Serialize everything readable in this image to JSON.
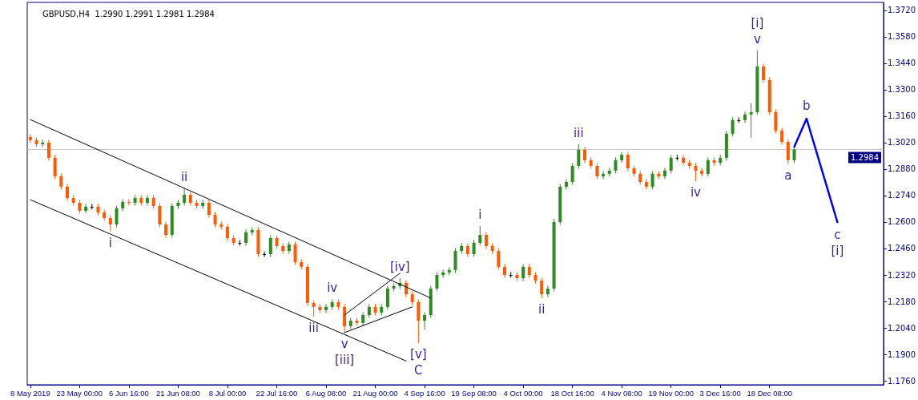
{
  "chart_data": {
    "type": "candlestick",
    "title": "GBPUSD,H4  1.2990 1.2991 1.2981 1.2984",
    "categories": [
      "8 May 2019",
      null,
      null,
      null,
      null,
      null,
      null,
      null,
      "23 May 00:00",
      null,
      null,
      null,
      null,
      null,
      null,
      null,
      "6 Jun 16:00",
      null,
      null,
      null,
      null,
      null,
      null,
      null,
      "21 Jun 08:00",
      null,
      null,
      null,
      null,
      null,
      null,
      null,
      "8 Jul 00:00",
      null,
      null,
      null,
      null,
      null,
      null,
      null,
      "22 Jul 16:00",
      null,
      null,
      null,
      null,
      null,
      null,
      null,
      "6 Aug 08:00",
      null,
      null,
      null,
      null,
      null,
      null,
      null,
      "21 Aug 00:00",
      null,
      null,
      null,
      null,
      null,
      null,
      null,
      "4 Sep 16:00",
      null,
      null,
      null,
      null,
      null,
      null,
      null,
      "19 Sep 08:00",
      null,
      null,
      null,
      null,
      null,
      null,
      null,
      "4 Oct 00:00",
      null,
      null,
      null,
      null,
      null,
      null,
      null,
      "18 Oct 16:00",
      null,
      null,
      null,
      null,
      null,
      null,
      null,
      "4 Nov 08:00",
      null,
      null,
      null,
      null,
      null,
      null,
      null,
      "19 Nov 00:00",
      null,
      null,
      null,
      null,
      null,
      null,
      null,
      "3 Dec 16:00",
      null,
      null,
      null,
      null,
      null,
      null,
      null,
      "18 Dec 08:00",
      null,
      null,
      null,
      null,
      null,
      null,
      null,
      null,
      null,
      null,
      null,
      null,
      null,
      null,
      null,
      null,
      null,
      null
    ],
    "ohlc": [
      [
        1.305,
        1.3065,
        1.3018,
        1.3033
      ],
      [
        1.3033,
        1.3048,
        1.2997,
        1.3012
      ],
      [
        1.3012,
        1.3035,
        1.2997,
        1.302
      ],
      [
        1.302,
        1.3035,
        1.2925,
        1.294
      ],
      [
        1.294,
        1.2955,
        1.2827,
        1.2842
      ],
      [
        1.2842,
        1.2857,
        1.2772,
        1.2787
      ],
      [
        1.2787,
        1.2802,
        1.2712,
        1.2727
      ],
      [
        1.2727,
        1.2742,
        1.2687,
        1.2702
      ],
      [
        1.2702,
        1.2717,
        1.2645,
        1.266
      ],
      [
        1.266,
        1.2696,
        1.2645,
        1.2681
      ],
      [
        1.2681,
        1.2696,
        1.2666,
        1.2681
      ],
      [
        1.2681,
        1.2696,
        1.2636,
        1.2651
      ],
      [
        1.2651,
        1.2666,
        1.2606,
        1.2621
      ],
      [
        1.2621,
        1.2636,
        1.255,
        1.2587
      ],
      [
        1.2587,
        1.2687,
        1.2572,
        1.2672
      ],
      [
        1.2672,
        1.2721,
        1.2657,
        1.2706
      ],
      [
        1.2706,
        1.2721,
        1.2687,
        1.2702
      ],
      [
        1.2702,
        1.2742,
        1.2687,
        1.2727
      ],
      [
        1.2727,
        1.2742,
        1.2687,
        1.2702
      ],
      [
        1.2702,
        1.2742,
        1.2687,
        1.2727
      ],
      [
        1.2727,
        1.2742,
        1.267,
        1.2685
      ],
      [
        1.2685,
        1.27,
        1.2572,
        1.2587
      ],
      [
        1.2587,
        1.2602,
        1.2517,
        1.2532
      ],
      [
        1.2532,
        1.27,
        1.2517,
        1.2685
      ],
      [
        1.2685,
        1.2717,
        1.267,
        1.2702
      ],
      [
        1.2702,
        1.2778,
        1.2687,
        1.2744
      ],
      [
        1.2744,
        1.2759,
        1.2687,
        1.2702
      ],
      [
        1.2702,
        1.2717,
        1.267,
        1.2685
      ],
      [
        1.2685,
        1.2717,
        1.267,
        1.2702
      ],
      [
        1.2702,
        1.2717,
        1.2623,
        1.2638
      ],
      [
        1.2638,
        1.2653,
        1.2572,
        1.2587
      ],
      [
        1.2587,
        1.2602,
        1.256,
        1.2575
      ],
      [
        1.2575,
        1.259,
        1.25,
        1.2515
      ],
      [
        1.2515,
        1.253,
        1.2475,
        1.249
      ],
      [
        1.249,
        1.2505,
        1.2475,
        1.249
      ],
      [
        1.249,
        1.256,
        1.2475,
        1.2545
      ],
      [
        1.2545,
        1.2573,
        1.253,
        1.2558
      ],
      [
        1.2558,
        1.2573,
        1.2415,
        1.243
      ],
      [
        1.243,
        1.2445,
        1.2415,
        1.243
      ],
      [
        1.243,
        1.253,
        1.2415,
        1.2515
      ],
      [
        1.2515,
        1.253,
        1.2458,
        1.2473
      ],
      [
        1.2473,
        1.2488,
        1.2432,
        1.2447
      ],
      [
        1.2447,
        1.2496,
        1.2432,
        1.2481
      ],
      [
        1.2481,
        1.2496,
        1.2373,
        1.2388
      ],
      [
        1.2388,
        1.2403,
        1.2348,
        1.2363
      ],
      [
        1.2363,
        1.2378,
        1.2157,
        1.2172
      ],
      [
        1.2172,
        1.2187,
        1.21,
        1.2151
      ],
      [
        1.2151,
        1.2166,
        1.2119,
        1.2134
      ],
      [
        1.2134,
        1.2166,
        1.2119,
        1.2151
      ],
      [
        1.2151,
        1.2191,
        1.2136,
        1.2176
      ],
      [
        1.2176,
        1.2191,
        1.2136,
        1.2151
      ],
      [
        1.2151,
        1.2166,
        1.2015,
        1.2049
      ],
      [
        1.2049,
        1.2093,
        1.2034,
        1.2078
      ],
      [
        1.2078,
        1.2093,
        1.2051,
        1.2066
      ],
      [
        1.2066,
        1.2123,
        1.2051,
        1.2108
      ],
      [
        1.2108,
        1.2166,
        1.2093,
        1.2151
      ],
      [
        1.2151,
        1.2166,
        1.2106,
        1.2121
      ],
      [
        1.2121,
        1.2166,
        1.2106,
        1.2151
      ],
      [
        1.2151,
        1.2263,
        1.2136,
        1.2248
      ],
      [
        1.2248,
        1.2276,
        1.2233,
        1.2261
      ],
      [
        1.2261,
        1.2303,
        1.2246,
        1.2278
      ],
      [
        1.2278,
        1.2293,
        1.2203,
        1.2218
      ],
      [
        1.2218,
        1.2233,
        1.2161,
        1.2176
      ],
      [
        1.2176,
        1.2191,
        1.196,
        1.2078
      ],
      [
        1.2078,
        1.2123,
        1.203,
        1.2108
      ],
      [
        1.2108,
        1.2263,
        1.2093,
        1.2248
      ],
      [
        1.2248,
        1.2335,
        1.2233,
        1.232
      ],
      [
        1.232,
        1.2348,
        1.2305,
        1.2333
      ],
      [
        1.2333,
        1.2361,
        1.2318,
        1.2346
      ],
      [
        1.2346,
        1.2462,
        1.2331,
        1.2447
      ],
      [
        1.2447,
        1.2488,
        1.2432,
        1.2473
      ],
      [
        1.2473,
        1.2488,
        1.2415,
        1.243
      ],
      [
        1.243,
        1.2505,
        1.2415,
        1.249
      ],
      [
        1.249,
        1.2579,
        1.2475,
        1.2532
      ],
      [
        1.2532,
        1.2547,
        1.2458,
        1.2473
      ],
      [
        1.2473,
        1.2488,
        1.2432,
        1.2447
      ],
      [
        1.2447,
        1.2462,
        1.2348,
        1.2363
      ],
      [
        1.2363,
        1.2378,
        1.2305,
        1.232
      ],
      [
        1.232,
        1.2335,
        1.2305,
        1.232
      ],
      [
        1.232,
        1.2335,
        1.2288,
        1.2303
      ],
      [
        1.2303,
        1.2378,
        1.2288,
        1.2363
      ],
      [
        1.2363,
        1.2378,
        1.2305,
        1.232
      ],
      [
        1.232,
        1.2335,
        1.2275,
        1.229
      ],
      [
        1.229,
        1.2305,
        1.2197,
        1.2218
      ],
      [
        1.2218,
        1.2263,
        1.2203,
        1.2248
      ],
      [
        1.2248,
        1.2615,
        1.2233,
        1.26
      ],
      [
        1.26,
        1.2802,
        1.2585,
        1.2787
      ],
      [
        1.2787,
        1.2827,
        1.2772,
        1.2812
      ],
      [
        1.2812,
        1.2912,
        1.2797,
        1.2897
      ],
      [
        1.2897,
        1.3012,
        1.2882,
        1.2982
      ],
      [
        1.2982,
        1.2997,
        1.2912,
        1.2927
      ],
      [
        1.2927,
        1.2942,
        1.2882,
        1.2897
      ],
      [
        1.2897,
        1.2912,
        1.2827,
        1.2842
      ],
      [
        1.2842,
        1.287,
        1.2827,
        1.2855
      ],
      [
        1.2855,
        1.2887,
        1.284,
        1.2872
      ],
      [
        1.2872,
        1.2942,
        1.2857,
        1.2927
      ],
      [
        1.2927,
        1.2971,
        1.2912,
        1.2956
      ],
      [
        1.2956,
        1.2971,
        1.2869,
        1.2884
      ],
      [
        1.2884,
        1.2899,
        1.284,
        1.2855
      ],
      [
        1.2855,
        1.287,
        1.2797,
        1.2812
      ],
      [
        1.2812,
        1.2827,
        1.2772,
        1.2787
      ],
      [
        1.2787,
        1.287,
        1.2772,
        1.2855
      ],
      [
        1.2855,
        1.287,
        1.2827,
        1.2842
      ],
      [
        1.2842,
        1.2887,
        1.2827,
        1.2872
      ],
      [
        1.2872,
        1.2955,
        1.2857,
        1.294
      ],
      [
        1.294,
        1.2955,
        1.2925,
        1.294
      ],
      [
        1.294,
        1.2955,
        1.2899,
        1.2914
      ],
      [
        1.2914,
        1.2929,
        1.2882,
        1.2897
      ],
      [
        1.2897,
        1.2912,
        1.2816,
        1.2872
      ],
      [
        1.2872,
        1.2887,
        1.284,
        1.2855
      ],
      [
        1.2855,
        1.2942,
        1.284,
        1.2927
      ],
      [
        1.2927,
        1.2942,
        1.2899,
        1.2914
      ],
      [
        1.2914,
        1.2955,
        1.2899,
        1.294
      ],
      [
        1.294,
        1.3082,
        1.2925,
        1.3067
      ],
      [
        1.3067,
        1.3154,
        1.3052,
        1.3139
      ],
      [
        1.3139,
        1.3154,
        1.3124,
        1.3139
      ],
      [
        1.3139,
        1.3184,
        1.3124,
        1.3169
      ],
      [
        1.3169,
        1.323,
        1.3046,
        1.3181
      ],
      [
        1.3181,
        1.3508,
        1.3166,
        1.3423
      ],
      [
        1.3423,
        1.3438,
        1.3336,
        1.3351
      ],
      [
        1.3351,
        1.3366,
        1.3166,
        1.3181
      ],
      [
        1.3181,
        1.3196,
        1.3069,
        1.3084
      ],
      [
        1.3084,
        1.3099,
        1.3009,
        1.3024
      ],
      [
        1.3024,
        1.3039,
        1.2906,
        1.2927
      ],
      [
        1.2927,
        1.2999,
        1.2912,
        1.2984
      ],
      null,
      null,
      null,
      null,
      null,
      null,
      null,
      null,
      null,
      null,
      null,
      null,
      null,
      null
    ],
    "colors": [
      "#ff5a00",
      "#ff5a00",
      "#2e8b22",
      "#ff5a00",
      "#ff5a00",
      "#ff5a00",
      "#ff5a00",
      "#ff5a00",
      "#ff5a00",
      "#2e8b22",
      "#000000",
      "#ff5a00",
      "#ff5a00",
      "#ff5a00",
      "#2e8b22",
      "#2e8b22",
      "#ff5a00",
      "#2e8b22",
      "#ff5a00",
      "#2e8b22",
      "#ff5a00",
      "#ff5a00",
      "#ff5a00",
      "#2e8b22",
      "#2e8b22",
      "#2e8b22",
      "#ff5a00",
      "#ff5a00",
      "#2e8b22",
      "#ff5a00",
      "#ff5a00",
      "#ff5a00",
      "#ff5a00",
      "#ff5a00",
      "#000000",
      "#2e8b22",
      "#2e8b22",
      "#ff5a00",
      "#000000",
      "#2e8b22",
      "#ff5a00",
      "#ff5a00",
      "#2e8b22",
      "#ff5a00",
      "#ff5a00",
      "#ff5a00",
      "#ff5a00",
      "#ff5a00",
      "#2e8b22",
      "#2e8b22",
      "#ff5a00",
      "#ff5a00",
      "#2e8b22",
      "#ff5a00",
      "#2e8b22",
      "#2e8b22",
      "#ff5a00",
      "#2e8b22",
      "#2e8b22",
      "#2e8b22",
      "#2e8b22",
      "#ff5a00",
      "#ff5a00",
      "#ff5a00",
      "#2e8b22",
      "#2e8b22",
      "#2e8b22",
      "#2e8b22",
      "#2e8b22",
      "#2e8b22",
      "#2e8b22",
      "#ff5a00",
      "#2e8b22",
      "#2e8b22",
      "#ff5a00",
      "#ff5a00",
      "#ff5a00",
      "#ff5a00",
      "#000000",
      "#ff5a00",
      "#2e8b22",
      "#ff5a00",
      "#ff5a00",
      "#ff5a00",
      "#2e8b22",
      "#2e8b22",
      "#2e8b22",
      "#2e8b22",
      "#2e8b22",
      "#2e8b22",
      "#ff5a00",
      "#ff5a00",
      "#ff5a00",
      "#2e8b22",
      "#2e8b22",
      "#2e8b22",
      "#2e8b22",
      "#ff5a00",
      "#ff5a00",
      "#ff5a00",
      "#ff5a00",
      "#2e8b22",
      "#ff5a00",
      "#2e8b22",
      "#2e8b22",
      "#000000",
      "#ff5a00",
      "#ff5a00",
      "#ff5a00",
      "#ff5a00",
      "#2e8b22",
      "#ff5a00",
      "#2e8b22",
      "#2e8b22",
      "#2e8b22",
      "#000000",
      "#2e8b22",
      "#2e8b22",
      "#2e8b22",
      "#ff5a00",
      "#ff5a00",
      "#ff5a00",
      "#ff5a00",
      "#ff5a00",
      "#2e8b22",
      null,
      null,
      null,
      null,
      null,
      null,
      null,
      null,
      null,
      null,
      null,
      null,
      null,
      null
    ],
    "value_labels": [
      null,
      null,
      null,
      null,
      null,
      null,
      null,
      null,
      null,
      null,
      null,
      null,
      null,
      "i",
      null,
      null,
      null,
      null,
      null,
      null,
      null,
      null,
      null,
      null,
      null,
      "ii",
      null,
      null,
      null,
      null,
      null,
      null,
      null,
      null,
      null,
      null,
      null,
      null,
      null,
      null,
      null,
      null,
      null,
      null,
      null,
      null,
      "iii",
      null,
      null,
      "iv",
      null,
      "v\n[iii]",
      null,
      null,
      null,
      null,
      null,
      null,
      null,
      null,
      "[iv]",
      null,
      null,
      "[v]\nC",
      null,
      null,
      null,
      null,
      null,
      null,
      null,
      null,
      null,
      "i",
      null,
      null,
      null,
      null,
      null,
      null,
      null,
      null,
      null,
      "ii",
      null,
      null,
      null,
      null,
      null,
      "iii",
      null,
      null,
      null,
      null,
      null,
      null,
      null,
      null,
      null,
      null,
      null,
      null,
      null,
      null,
      null,
      null,
      null,
      null,
      "iv",
      null,
      null,
      null,
      null,
      null,
      null,
      null,
      null,
      null,
      "[i]\nv",
      null,
      null,
      null,
      null,
      "a",
      null,
      null,
      null,
      null,
      null,
      null,
      null,
      null,
      null,
      null,
      null,
      null,
      null,
      null,
      null
    ],
    "series": [
      {
        "type": "line",
        "color": "#000000",
        "values": [
          1.3142,
          null,
          null,
          null,
          null,
          null,
          null,
          null,
          null,
          null,
          null,
          null,
          null,
          null,
          null,
          null,
          null,
          null,
          null,
          null,
          null,
          null,
          null,
          null,
          null,
          null,
          null,
          null,
          null,
          null,
          null,
          null,
          null,
          null,
          null,
          null,
          null,
          null,
          null,
          null,
          null,
          null,
          null,
          null,
          null,
          null,
          null,
          null,
          null,
          null,
          null,
          null,
          null,
          null,
          null,
          null,
          null,
          null,
          null,
          null,
          null,
          null,
          null,
          null,
          null,
          1.2198,
          null,
          null,
          null,
          null,
          null,
          null,
          null,
          null,
          null,
          null,
          null,
          null,
          null,
          null,
          null,
          null,
          null,
          null,
          null,
          null,
          null,
          null,
          null,
          null,
          null,
          null,
          null,
          null,
          null,
          null,
          null,
          null,
          null,
          null,
          null,
          null,
          null,
          null,
          null,
          null,
          null,
          null,
          null,
          null,
          null,
          null,
          null,
          null,
          null,
          null,
          null,
          null,
          null,
          null,
          null,
          null,
          null,
          null,
          null,
          null,
          null,
          null,
          null,
          null,
          null,
          null,
          null,
          null,
          null,
          null,
          null,
          null,
          null
        ]
      },
      {
        "type": "line",
        "color": "#000000",
        "values": [
          1.2718,
          null,
          null,
          null,
          null,
          null,
          null,
          null,
          null,
          null,
          null,
          null,
          null,
          null,
          null,
          null,
          null,
          null,
          null,
          null,
          null,
          null,
          null,
          null,
          null,
          null,
          null,
          null,
          null,
          null,
          null,
          null,
          null,
          null,
          null,
          null,
          null,
          null,
          null,
          null,
          null,
          null,
          null,
          null,
          null,
          null,
          null,
          null,
          null,
          null,
          null,
          null,
          null,
          null,
          null,
          null,
          null,
          null,
          null,
          null,
          null,
          1.1865,
          null,
          null,
          null,
          null,
          null,
          null,
          null,
          null,
          null,
          null,
          null,
          null,
          null,
          null,
          null,
          null,
          null,
          null,
          null,
          null,
          null,
          null,
          null,
          null,
          null,
          null,
          null,
          null,
          null,
          null,
          null,
          null,
          null,
          null,
          null,
          null,
          null,
          null,
          null,
          null,
          null,
          null,
          null,
          null,
          null,
          null,
          null,
          null,
          null,
          null,
          null,
          null,
          null,
          null,
          null,
          null,
          null,
          null,
          null,
          null,
          null,
          null,
          null,
          null,
          null,
          null,
          null,
          null,
          null,
          null,
          null,
          null,
          null,
          null,
          null,
          null,
          null
        ]
      },
      {
        "type": "line",
        "color": "#000000",
        "values": [
          null,
          null,
          null,
          null,
          null,
          null,
          null,
          null,
          null,
          null,
          null,
          null,
          null,
          null,
          null,
          null,
          null,
          null,
          null,
          null,
          null,
          null,
          null,
          null,
          null,
          null,
          null,
          null,
          null,
          null,
          null,
          null,
          null,
          null,
          null,
          null,
          null,
          null,
          null,
          null,
          null,
          null,
          null,
          null,
          null,
          null,
          null,
          null,
          null,
          null,
          null,
          1.2108,
          null,
          null,
          null,
          null,
          null,
          null,
          null,
          null,
          1.2329,
          null,
          null,
          null,
          null,
          null,
          null,
          null,
          null,
          null,
          null,
          null,
          null,
          null,
          null,
          null,
          null,
          null,
          null,
          null,
          null,
          null,
          null,
          null,
          null,
          null,
          null,
          null,
          null,
          null,
          null,
          null,
          null,
          null,
          null,
          null,
          null,
          null,
          null,
          null,
          null,
          null,
          null,
          null,
          null,
          null,
          null,
          null,
          null,
          null,
          null,
          null,
          null,
          null,
          null,
          null,
          null,
          null,
          null,
          null,
          null,
          null,
          null,
          null,
          null,
          null,
          null,
          null,
          null,
          null,
          null,
          null,
          null,
          null,
          null,
          null,
          null,
          null,
          null
        ]
      },
      {
        "type": "line",
        "color": "#000000",
        "values": [
          null,
          null,
          null,
          null,
          null,
          null,
          null,
          null,
          null,
          null,
          null,
          null,
          null,
          null,
          null,
          null,
          null,
          null,
          null,
          null,
          null,
          null,
          null,
          null,
          null,
          null,
          null,
          null,
          null,
          null,
          null,
          null,
          null,
          null,
          null,
          null,
          null,
          null,
          null,
          null,
          null,
          null,
          null,
          null,
          null,
          null,
          null,
          null,
          null,
          null,
          null,
          1.2015,
          null,
          null,
          null,
          null,
          null,
          null,
          null,
          null,
          null,
          null,
          1.2151,
          null,
          null,
          null,
          null,
          null,
          null,
          null,
          null,
          null,
          null,
          null,
          null,
          null,
          null,
          null,
          null,
          null,
          null,
          null,
          null,
          null,
          null,
          null,
          null,
          null,
          null,
          null,
          null,
          null,
          null,
          null,
          null,
          null,
          null,
          null,
          null,
          null,
          null,
          null,
          null,
          null,
          null,
          null,
          null,
          null,
          null,
          null,
          null,
          null,
          null,
          null,
          null,
          null,
          null,
          null,
          null,
          null,
          null,
          null,
          null,
          null,
          null,
          null,
          null,
          null,
          null,
          null,
          null,
          null,
          null,
          null,
          null,
          null,
          null,
          null,
          null
        ]
      },
      {
        "type": "line",
        "color": "#0000ff",
        "values": [
          null,
          null,
          null,
          null,
          null,
          null,
          null,
          null,
          null,
          null,
          null,
          null,
          null,
          null,
          null,
          null,
          null,
          null,
          null,
          null,
          null,
          null,
          null,
          null,
          null,
          null,
          null,
          null,
          null,
          null,
          null,
          null,
          null,
          null,
          null,
          null,
          null,
          null,
          null,
          null,
          null,
          null,
          null,
          null,
          null,
          null,
          null,
          null,
          null,
          null,
          null,
          null,
          null,
          null,
          null,
          null,
          null,
          null,
          null,
          null,
          null,
          null,
          null,
          null,
          null,
          null,
          null,
          null,
          null,
          null,
          null,
          null,
          null,
          null,
          null,
          null,
          null,
          null,
          null,
          null,
          null,
          null,
          null,
          null,
          null,
          null,
          null,
          null,
          null,
          null,
          null,
          null,
          null,
          null,
          null,
          null,
          null,
          null,
          null,
          null,
          null,
          null,
          null,
          null,
          null,
          null,
          null,
          null,
          null,
          null,
          null,
          null,
          null,
          null,
          null,
          null,
          null,
          null,
          null,
          null,
          null,
          null,
          null,
          null,
          1.2998,
          null,
          1.3147,
          null,
          null,
          null,
          null,
          1.26,
          null,
          null,
          null,
          null,
          null,
          null,
          null
        ],
        "value_labels": [
          null,
          null,
          null,
          null,
          null,
          null,
          null,
          null,
          null,
          null,
          null,
          null,
          null,
          null,
          null,
          null,
          null,
          null,
          null,
          null,
          null,
          null,
          null,
          null,
          null,
          null,
          null,
          null,
          null,
          null,
          null,
          null,
          null,
          null,
          null,
          null,
          null,
          null,
          null,
          null,
          null,
          null,
          null,
          null,
          null,
          null,
          null,
          null,
          null,
          null,
          null,
          null,
          null,
          null,
          null,
          null,
          null,
          null,
          null,
          null,
          null,
          null,
          null,
          null,
          null,
          null,
          null,
          null,
          null,
          null,
          null,
          null,
          null,
          null,
          null,
          null,
          null,
          null,
          null,
          null,
          null,
          null,
          null,
          null,
          null,
          null,
          null,
          null,
          null,
          null,
          null,
          null,
          null,
          null,
          null,
          null,
          null,
          null,
          null,
          null,
          null,
          null,
          null,
          null,
          null,
          null,
          null,
          null,
          null,
          null,
          null,
          null,
          null,
          null,
          null,
          null,
          null,
          null,
          null,
          null,
          null,
          null,
          null,
          null,
          null,
          null,
          "b",
          null,
          null,
          null,
          null,
          "c\n[i]",
          null,
          null,
          null,
          null,
          null,
          null,
          null
        ]
      }
    ],
    "ylim": [
      1.1739,
      1.3762
    ],
    "yticks": [
      {
        "value": 1.176,
        "label": "1.1760"
      },
      {
        "value": 1.19,
        "label": "1.1900"
      },
      {
        "value": 1.204,
        "label": "1.2040"
      },
      {
        "value": 1.218,
        "label": "1.2180"
      },
      {
        "value": 1.232,
        "label": "1.2320"
      },
      {
        "value": 1.246,
        "label": "1.2460"
      },
      {
        "value": 1.26,
        "label": "1.2600"
      },
      {
        "value": 1.274,
        "label": "1.2740"
      },
      {
        "value": 1.288,
        "label": "1.2880"
      },
      {
        "value": 1.302,
        "label": "1.3020"
      },
      {
        "value": 1.316,
        "label": "1.3160"
      },
      {
        "value": 1.33,
        "label": "1.3300"
      },
      {
        "value": 1.344,
        "label": "1.3440"
      },
      {
        "value": 1.358,
        "label": "1.3580"
      },
      {
        "value": 1.372,
        "label": "1.3720"
      }
    ],
    "ref_lines": [
      {
        "axis": "y",
        "value": 1.2984,
        "label": "1.2984",
        "color": "#c8c8c8"
      }
    ],
    "grid": false,
    "marker": "none",
    "line_style": "solid"
  }
}
